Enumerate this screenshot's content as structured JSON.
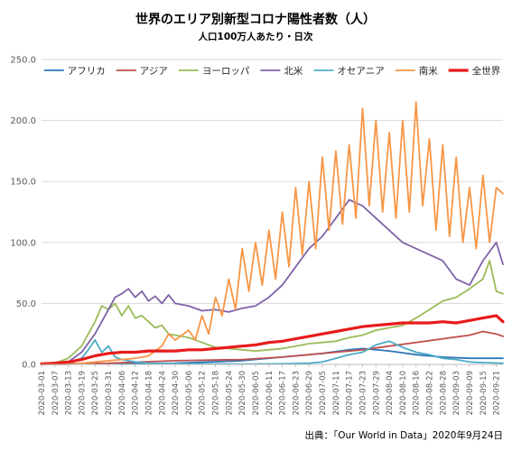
{
  "chart_data": {
    "type": "line",
    "title": "世界のエリア別新型コロナ陽性者数（人）",
    "subtitle": "人口100万人あたり・日次",
    "source": "出典：「Our World in Data」2020年9月24日",
    "ylim": [
      0,
      250
    ],
    "y_ticks": [
      "0.0",
      "50.0",
      "100.0",
      "150.0",
      "200.0",
      "250.0"
    ],
    "grid": "horizontal",
    "legend_position": "top",
    "x_start": "2020-03-01",
    "x_end": "2020-09-24",
    "x_tick_labels": [
      "2020-03-01",
      "2020-03-07",
      "2020-03-13",
      "2020-03-19",
      "2020-03-25",
      "2020-03-31",
      "2020-04-06",
      "2020-04-12",
      "2020-04-18",
      "2020-04-24",
      "2020-04-30",
      "2020-05-06",
      "2020-05-12",
      "2020-05-18",
      "2020-05-24",
      "2020-05-30",
      "2020-06-05",
      "2020-06-11",
      "2020-06-17",
      "2020-06-23",
      "2020-06-29",
      "2020-07-05",
      "2020-07-11",
      "2020-07-17",
      "2020-07-23",
      "2020-07-29",
      "2020-08-04",
      "2020-08-10",
      "2020-08-16",
      "2020-08-22",
      "2020-08-28",
      "2020-09-03",
      "2020-09-09",
      "2020-09-15",
      "2020-09-21"
    ],
    "series": [
      {
        "name": "アフリカ",
        "color": "#2e75b6",
        "width": 1.8,
        "points": [
          [
            "2020-03-01",
            0
          ],
          [
            "2020-03-31",
            0.5
          ],
          [
            "2020-04-30",
            1
          ],
          [
            "2020-05-30",
            3
          ],
          [
            "2020-06-17",
            6
          ],
          [
            "2020-07-05",
            9
          ],
          [
            "2020-07-17",
            12
          ],
          [
            "2020-07-23",
            13
          ],
          [
            "2020-08-04",
            11
          ],
          [
            "2020-08-16",
            8
          ],
          [
            "2020-08-28",
            6
          ],
          [
            "2020-09-09",
            5
          ],
          [
            "2020-09-24",
            5
          ]
        ]
      },
      {
        "name": "アジア",
        "color": "#c0504d",
        "width": 1.8,
        "points": [
          [
            "2020-03-01",
            0.5
          ],
          [
            "2020-03-31",
            1
          ],
          [
            "2020-04-30",
            3
          ],
          [
            "2020-05-30",
            4
          ],
          [
            "2020-06-17",
            6
          ],
          [
            "2020-06-29",
            8
          ],
          [
            "2020-07-11",
            10
          ],
          [
            "2020-07-23",
            12
          ],
          [
            "2020-08-04",
            15
          ],
          [
            "2020-08-16",
            18
          ],
          [
            "2020-08-28",
            21
          ],
          [
            "2020-09-09",
            24
          ],
          [
            "2020-09-15",
            27
          ],
          [
            "2020-09-21",
            25
          ],
          [
            "2020-09-24",
            23
          ]
        ]
      },
      {
        "name": "ヨーロッパ",
        "color": "#9bbb59",
        "width": 1.8,
        "points": [
          [
            "2020-03-01",
            0
          ],
          [
            "2020-03-07",
            1
          ],
          [
            "2020-03-13",
            5
          ],
          [
            "2020-03-19",
            15
          ],
          [
            "2020-03-25",
            35
          ],
          [
            "2020-03-28",
            48
          ],
          [
            "2020-03-31",
            45
          ],
          [
            "2020-04-03",
            50
          ],
          [
            "2020-04-06",
            40
          ],
          [
            "2020-04-09",
            48
          ],
          [
            "2020-04-12",
            38
          ],
          [
            "2020-04-15",
            40
          ],
          [
            "2020-04-18",
            35
          ],
          [
            "2020-04-21",
            30
          ],
          [
            "2020-04-24",
            32
          ],
          [
            "2020-04-27",
            25
          ],
          [
            "2020-04-30",
            24
          ],
          [
            "2020-05-06",
            22
          ],
          [
            "2020-05-12",
            18
          ],
          [
            "2020-05-18",
            14
          ],
          [
            "2020-05-24",
            13
          ],
          [
            "2020-05-30",
            12
          ],
          [
            "2020-06-05",
            11
          ],
          [
            "2020-06-11",
            12
          ],
          [
            "2020-06-17",
            13
          ],
          [
            "2020-06-23",
            15
          ],
          [
            "2020-06-29",
            17
          ],
          [
            "2020-07-05",
            18
          ],
          [
            "2020-07-11",
            19
          ],
          [
            "2020-07-17",
            22
          ],
          [
            "2020-07-23",
            24
          ],
          [
            "2020-07-29",
            28
          ],
          [
            "2020-08-04",
            30
          ],
          [
            "2020-08-10",
            32
          ],
          [
            "2020-08-16",
            38
          ],
          [
            "2020-08-22",
            45
          ],
          [
            "2020-08-28",
            52
          ],
          [
            "2020-09-03",
            55
          ],
          [
            "2020-09-09",
            62
          ],
          [
            "2020-09-15",
            70
          ],
          [
            "2020-09-18",
            85
          ],
          [
            "2020-09-21",
            60
          ],
          [
            "2020-09-24",
            58
          ]
        ]
      },
      {
        "name": "北米",
        "color": "#7f63a8",
        "width": 1.8,
        "points": [
          [
            "2020-03-01",
            0
          ],
          [
            "2020-03-07",
            0.5
          ],
          [
            "2020-03-13",
            2
          ],
          [
            "2020-03-19",
            10
          ],
          [
            "2020-03-25",
            25
          ],
          [
            "2020-03-31",
            45
          ],
          [
            "2020-04-03",
            55
          ],
          [
            "2020-04-06",
            58
          ],
          [
            "2020-04-09",
            62
          ],
          [
            "2020-04-12",
            55
          ],
          [
            "2020-04-15",
            60
          ],
          [
            "2020-04-18",
            52
          ],
          [
            "2020-04-21",
            56
          ],
          [
            "2020-04-24",
            50
          ],
          [
            "2020-04-27",
            57
          ],
          [
            "2020-04-30",
            50
          ],
          [
            "2020-05-06",
            48
          ],
          [
            "2020-05-12",
            44
          ],
          [
            "2020-05-18",
            45
          ],
          [
            "2020-05-24",
            43
          ],
          [
            "2020-05-30",
            46
          ],
          [
            "2020-06-05",
            48
          ],
          [
            "2020-06-11",
            55
          ],
          [
            "2020-06-17",
            65
          ],
          [
            "2020-06-23",
            80
          ],
          [
            "2020-06-29",
            95
          ],
          [
            "2020-07-05",
            105
          ],
          [
            "2020-07-11",
            120
          ],
          [
            "2020-07-17",
            135
          ],
          [
            "2020-07-23",
            130
          ],
          [
            "2020-07-29",
            120
          ],
          [
            "2020-08-04",
            110
          ],
          [
            "2020-08-10",
            100
          ],
          [
            "2020-08-16",
            95
          ],
          [
            "2020-08-22",
            90
          ],
          [
            "2020-08-28",
            85
          ],
          [
            "2020-09-03",
            70
          ],
          [
            "2020-09-09",
            65
          ],
          [
            "2020-09-15",
            85
          ],
          [
            "2020-09-21",
            100
          ],
          [
            "2020-09-24",
            82
          ]
        ]
      },
      {
        "name": "オセアニア",
        "color": "#4bacc6",
        "width": 1.8,
        "points": [
          [
            "2020-03-01",
            0
          ],
          [
            "2020-03-13",
            1
          ],
          [
            "2020-03-19",
            5
          ],
          [
            "2020-03-22",
            12
          ],
          [
            "2020-03-25",
            20
          ],
          [
            "2020-03-28",
            10
          ],
          [
            "2020-03-31",
            15
          ],
          [
            "2020-04-03",
            6
          ],
          [
            "2020-04-06",
            4
          ],
          [
            "2020-04-12",
            2
          ],
          [
            "2020-04-18",
            1
          ],
          [
            "2020-04-30",
            0.5
          ],
          [
            "2020-05-30",
            0.3
          ],
          [
            "2020-06-17",
            0.5
          ],
          [
            "2020-06-29",
            1
          ],
          [
            "2020-07-05",
            2
          ],
          [
            "2020-07-11",
            5
          ],
          [
            "2020-07-17",
            8
          ],
          [
            "2020-07-23",
            10
          ],
          [
            "2020-07-29",
            16
          ],
          [
            "2020-08-04",
            19
          ],
          [
            "2020-08-10",
            14
          ],
          [
            "2020-08-16",
            10
          ],
          [
            "2020-08-22",
            8
          ],
          [
            "2020-08-28",
            5
          ],
          [
            "2020-09-03",
            4
          ],
          [
            "2020-09-09",
            2
          ],
          [
            "2020-09-15",
            1.5
          ],
          [
            "2020-09-24",
            1
          ]
        ]
      },
      {
        "name": "南米",
        "color": "#f79646",
        "width": 1.8,
        "points": [
          [
            "2020-03-01",
            0
          ],
          [
            "2020-03-13",
            0
          ],
          [
            "2020-03-19",
            1
          ],
          [
            "2020-03-25",
            2
          ],
          [
            "2020-03-31",
            3
          ],
          [
            "2020-04-06",
            4
          ],
          [
            "2020-04-12",
            5
          ],
          [
            "2020-04-18",
            7
          ],
          [
            "2020-04-24",
            15
          ],
          [
            "2020-04-27",
            25
          ],
          [
            "2020-04-30",
            20
          ],
          [
            "2020-05-06",
            28
          ],
          [
            "2020-05-09",
            20
          ],
          [
            "2020-05-12",
            40
          ],
          [
            "2020-05-15",
            25
          ],
          [
            "2020-05-18",
            55
          ],
          [
            "2020-05-21",
            40
          ],
          [
            "2020-05-24",
            70
          ],
          [
            "2020-05-27",
            45
          ],
          [
            "2020-05-30",
            95
          ],
          [
            "2020-06-02",
            60
          ],
          [
            "2020-06-05",
            100
          ],
          [
            "2020-06-08",
            65
          ],
          [
            "2020-06-11",
            110
          ],
          [
            "2020-06-14",
            70
          ],
          [
            "2020-06-17",
            125
          ],
          [
            "2020-06-20",
            80
          ],
          [
            "2020-06-23",
            145
          ],
          [
            "2020-06-26",
            90
          ],
          [
            "2020-06-29",
            150
          ],
          [
            "2020-07-02",
            95
          ],
          [
            "2020-07-05",
            170
          ],
          [
            "2020-07-08",
            110
          ],
          [
            "2020-07-11",
            175
          ],
          [
            "2020-07-14",
            115
          ],
          [
            "2020-07-17",
            180
          ],
          [
            "2020-07-20",
            120
          ],
          [
            "2020-07-23",
            210
          ],
          [
            "2020-07-26",
            130
          ],
          [
            "2020-07-29",
            200
          ],
          [
            "2020-08-01",
            125
          ],
          [
            "2020-08-04",
            190
          ],
          [
            "2020-08-07",
            120
          ],
          [
            "2020-08-10",
            200
          ],
          [
            "2020-08-13",
            125
          ],
          [
            "2020-08-16",
            215
          ],
          [
            "2020-08-19",
            130
          ],
          [
            "2020-08-22",
            185
          ],
          [
            "2020-08-25",
            110
          ],
          [
            "2020-08-28",
            180
          ],
          [
            "2020-08-31",
            105
          ],
          [
            "2020-09-03",
            170
          ],
          [
            "2020-09-06",
            100
          ],
          [
            "2020-09-09",
            145
          ],
          [
            "2020-09-12",
            95
          ],
          [
            "2020-09-15",
            155
          ],
          [
            "2020-09-18",
            100
          ],
          [
            "2020-09-21",
            145
          ],
          [
            "2020-09-24",
            140
          ]
        ]
      },
      {
        "name": "全世界",
        "color": "#e81b1b",
        "width": 3.2,
        "points": [
          [
            "2020-03-01",
            0.5
          ],
          [
            "2020-03-07",
            1
          ],
          [
            "2020-03-13",
            2
          ],
          [
            "2020-03-19",
            4
          ],
          [
            "2020-03-25",
            7
          ],
          [
            "2020-03-31",
            9
          ],
          [
            "2020-04-06",
            10
          ],
          [
            "2020-04-12",
            10
          ],
          [
            "2020-04-18",
            11
          ],
          [
            "2020-04-24",
            11
          ],
          [
            "2020-04-30",
            11
          ],
          [
            "2020-05-06",
            12
          ],
          [
            "2020-05-12",
            12
          ],
          [
            "2020-05-18",
            13
          ],
          [
            "2020-05-24",
            14
          ],
          [
            "2020-05-30",
            15
          ],
          [
            "2020-06-05",
            16
          ],
          [
            "2020-06-11",
            18
          ],
          [
            "2020-06-17",
            19
          ],
          [
            "2020-06-23",
            21
          ],
          [
            "2020-06-29",
            23
          ],
          [
            "2020-07-05",
            25
          ],
          [
            "2020-07-11",
            27
          ],
          [
            "2020-07-17",
            29
          ],
          [
            "2020-07-23",
            31
          ],
          [
            "2020-07-29",
            32
          ],
          [
            "2020-08-04",
            33
          ],
          [
            "2020-08-10",
            34
          ],
          [
            "2020-08-16",
            34
          ],
          [
            "2020-08-22",
            34
          ],
          [
            "2020-08-28",
            35
          ],
          [
            "2020-09-03",
            34
          ],
          [
            "2020-09-09",
            36
          ],
          [
            "2020-09-15",
            38
          ],
          [
            "2020-09-21",
            40
          ],
          [
            "2020-09-24",
            35
          ]
        ]
      }
    ]
  }
}
